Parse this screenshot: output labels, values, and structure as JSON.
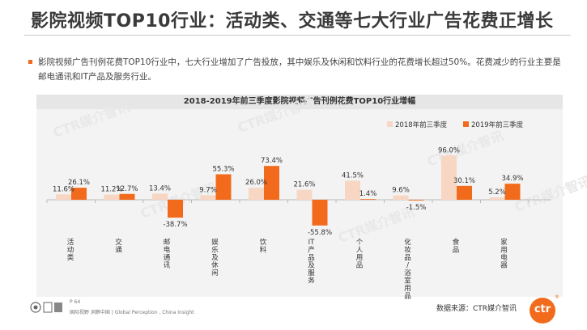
{
  "page": {
    "title": "影院视频TOP10行业：活动类、交通等七大行业广告花费正增长",
    "description": "影院视频广告刊例花费TOP10行业中，七大行业增加了广告投放，其中娱乐及休闲和饮料行业的花费增长超过50%。花费减少的行业主要是邮电通讯和IT产品及服务行业。",
    "watermark": "CTR媒介智讯",
    "footer_page": "P 64",
    "footer_slogan": "国际视野  洞察中国 | Global Perception , China Insight",
    "footer_source": "数据来源：CTR媒介智讯",
    "logo_text": "ctr",
    "logo_reg": "®"
  },
  "colors": {
    "accent": "#f26b1d",
    "series_2018": "#f8d6c4",
    "series_2019": "#f26b1d"
  },
  "chart_data": {
    "type": "bar",
    "title": "2018-2019年前三季度影院视频广告刊例花费TOP10行业增幅",
    "categories": [
      "活动类",
      "交通",
      "邮电通讯",
      "娱乐及休闲",
      "饮料",
      "IT产品及服务",
      "个人用品",
      "化妆品/浴室用品",
      "食品",
      "家用电器"
    ],
    "series": [
      {
        "name": "2018年前三季度",
        "values": [
          11.6,
          11.2,
          13.4,
          9.7,
          26.0,
          21.6,
          41.5,
          9.6,
          96.0,
          5.2
        ]
      },
      {
        "name": "2019年前三季度",
        "values": [
          26.1,
          12.7,
          -38.7,
          55.3,
          73.4,
          -55.8,
          1.4,
          -1.5,
          30.1,
          34.9
        ]
      }
    ],
    "labels_2018": [
      "11.6%",
      "11.2%",
      "13.4%",
      "9.7%",
      "26.0%",
      "21.6%",
      "41.5%",
      "9.6%",
      "96.0%",
      "5.2%"
    ],
    "labels_2019": [
      "26.1%",
      "12.7%",
      "-38.7%",
      "55.3%",
      "73.4%",
      "-55.8%",
      "1.4%",
      "-1.5%",
      "30.1%",
      "34.9%"
    ],
    "unit": "%",
    "legend_position": "top-right",
    "grid": false
  }
}
